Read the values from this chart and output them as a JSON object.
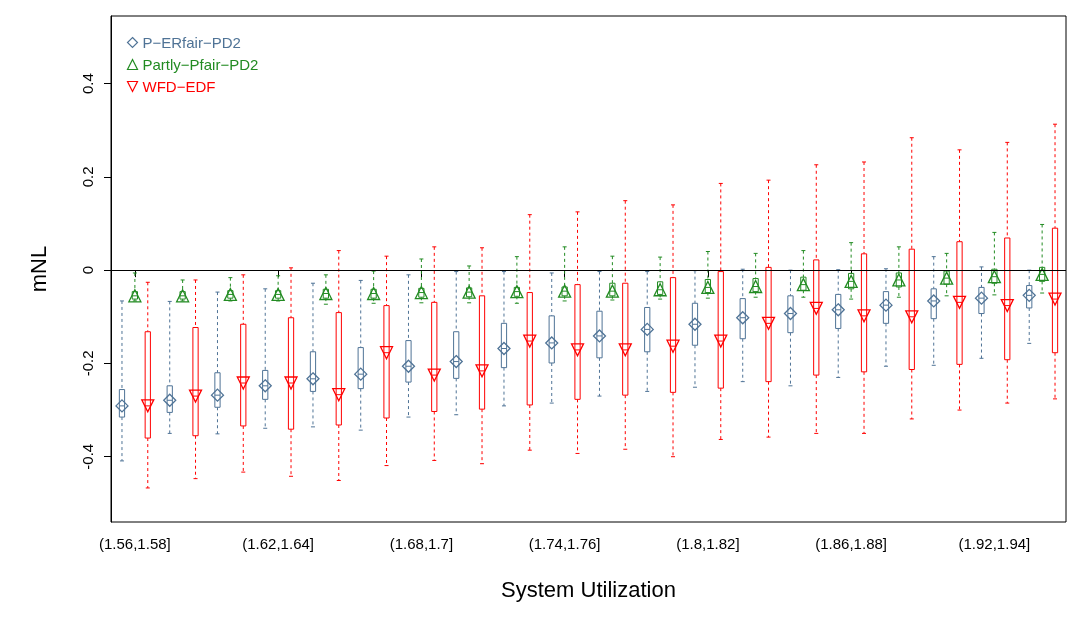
{
  "chart_data": {
    "type": "box",
    "xlabel": "System Utilization",
    "ylabel": "mNL",
    "legend": "top left",
    "categories": [
      "(1.56,1.58]",
      null,
      null,
      "(1.62,1.64]",
      null,
      null,
      "(1.68,1.7]",
      null,
      null,
      "(1.74,1.76]",
      null,
      null,
      "(1.8,1.82]",
      null,
      null,
      "(1.86,1.88]",
      null,
      null,
      "(1.92,1.94]",
      null
    ],
    "ylim": [
      -0.54,
      0.545
    ],
    "yticks": [
      -0.4,
      -0.2,
      0,
      0.2,
      0.4
    ],
    "ref_lines": [
      {
        "axis": "y",
        "value": 0,
        "color": "#000000"
      }
    ],
    "series": [
      {
        "name": "P−ERfair−PD2",
        "color": "#4f7396",
        "marker": "diamond",
        "boxes": [
          {
            "low": -0.409,
            "q1": -0.315,
            "median": -0.291,
            "mean": -0.291,
            "q3": -0.256,
            "high": -0.066
          },
          {
            "low": -0.35,
            "q1": -0.305,
            "median": -0.279,
            "mean": -0.279,
            "q3": -0.248,
            "high": -0.067
          },
          {
            "low": -0.351,
            "q1": -0.294,
            "median": -0.268,
            "mean": -0.268,
            "q3": -0.22,
            "high": -0.047
          },
          {
            "low": -0.339,
            "q1": -0.277,
            "median": -0.248,
            "mean": -0.248,
            "q3": -0.215,
            "high": -0.04
          },
          {
            "low": -0.336,
            "q1": -0.26,
            "median": -0.233,
            "mean": -0.233,
            "q3": -0.175,
            "high": -0.028
          },
          {
            "low": -0.343,
            "q1": -0.254,
            "median": -0.223,
            "mean": -0.223,
            "q3": -0.166,
            "high": -0.022
          },
          {
            "low": -0.315,
            "q1": -0.24,
            "median": -0.206,
            "mean": -0.206,
            "q3": -0.151,
            "high": -0.01
          },
          {
            "low": -0.31,
            "q1": -0.232,
            "median": -0.196,
            "mean": -0.196,
            "q3": -0.132,
            "high": -0.003
          },
          {
            "low": -0.291,
            "q1": -0.209,
            "median": -0.168,
            "mean": -0.168,
            "q3": -0.114,
            "high": -0.003
          },
          {
            "low": -0.285,
            "q1": -0.199,
            "median": -0.156,
            "mean": -0.156,
            "q3": -0.098,
            "high": -0.006
          },
          {
            "low": -0.27,
            "q1": -0.188,
            "median": -0.141,
            "mean": -0.141,
            "q3": -0.088,
            "high": -0.003
          },
          {
            "low": -0.26,
            "q1": -0.175,
            "median": -0.127,
            "mean": -0.127,
            "q3": -0.08,
            "high": -0.003
          },
          {
            "low": -0.251,
            "q1": -0.161,
            "median": -0.116,
            "mean": -0.116,
            "q3": -0.071,
            "high": -0.001
          },
          {
            "low": -0.239,
            "q1": -0.147,
            "median": -0.102,
            "mean": -0.102,
            "q3": -0.061,
            "high": 0.002
          },
          {
            "low": -0.248,
            "q1": -0.134,
            "median": -0.093,
            "mean": -0.093,
            "q3": -0.055,
            "high": 0
          },
          {
            "low": -0.23,
            "q1": -0.125,
            "median": -0.085,
            "mean": -0.085,
            "q3": -0.052,
            "high": 0.001
          },
          {
            "low": -0.206,
            "q1": -0.114,
            "median": -0.075,
            "mean": -0.075,
            "q3": -0.046,
            "high": 0.003
          },
          {
            "low": -0.204,
            "q1": -0.104,
            "median": -0.066,
            "mean": -0.066,
            "q3": -0.04,
            "high": 0.029
          },
          {
            "low": -0.189,
            "q1": -0.093,
            "median": -0.06,
            "mean": -0.06,
            "q3": -0.037,
            "high": 0.007
          },
          {
            "low": -0.157,
            "q1": -0.081,
            "median": -0.054,
            "mean": -0.054,
            "q3": -0.033,
            "high": 0
          }
        ]
      },
      {
        "name": "Partly−Pfair−PD2",
        "color": "#228b22",
        "marker": "triangle",
        "boxes": [
          {
            "low": -0.066,
            "q1": -0.062,
            "median": -0.055,
            "mean": -0.055,
            "q3": -0.046,
            "high": -0.006
          },
          {
            "low": -0.066,
            "q1": -0.062,
            "median": -0.055,
            "mean": -0.055,
            "q3": -0.046,
            "high": -0.021
          },
          {
            "low": -0.066,
            "q1": -0.06,
            "median": -0.052,
            "mean": -0.052,
            "q3": -0.044,
            "high": -0.016
          },
          {
            "low": -0.066,
            "q1": -0.06,
            "median": -0.052,
            "mean": -0.052,
            "q3": -0.044,
            "high": -0.012
          },
          {
            "low": -0.073,
            "q1": -0.06,
            "median": -0.05,
            "mean": -0.05,
            "q3": -0.041,
            "high": -0.01
          },
          {
            "low": -0.071,
            "q1": -0.06,
            "median": -0.05,
            "mean": -0.05,
            "q3": -0.041,
            "high": -0.002
          },
          {
            "low": -0.07,
            "q1": -0.058,
            "median": -0.048,
            "mean": -0.048,
            "q3": -0.039,
            "high": 0.024
          },
          {
            "low": -0.07,
            "q1": -0.057,
            "median": -0.047,
            "mean": -0.047,
            "q3": -0.038,
            "high": 0.009
          },
          {
            "low": -0.071,
            "q1": -0.056,
            "median": -0.046,
            "mean": -0.046,
            "q3": -0.037,
            "high": 0.029
          },
          {
            "low": -0.066,
            "q1": -0.055,
            "median": -0.045,
            "mean": -0.045,
            "q3": -0.036,
            "high": 0.05
          },
          {
            "low": -0.064,
            "q1": -0.055,
            "median": -0.045,
            "mean": -0.045,
            "q3": -0.028,
            "high": 0.03
          },
          {
            "low": -0.062,
            "q1": -0.052,
            "median": -0.042,
            "mean": -0.042,
            "q3": -0.025,
            "high": 0.028
          },
          {
            "low": -0.06,
            "q1": -0.048,
            "median": -0.037,
            "mean": -0.037,
            "q3": -0.02,
            "high": 0.04
          },
          {
            "low": -0.058,
            "q1": -0.046,
            "median": -0.035,
            "mean": -0.035,
            "q3": -0.018,
            "high": 0.036
          },
          {
            "low": -0.058,
            "q1": -0.043,
            "median": -0.031,
            "mean": -0.031,
            "q3": -0.015,
            "high": 0.042
          },
          {
            "low": -0.062,
            "q1": -0.04,
            "median": -0.024,
            "mean": -0.024,
            "q3": -0.007,
            "high": 0.059
          },
          {
            "low": -0.058,
            "q1": -0.036,
            "median": -0.021,
            "mean": -0.021,
            "q3": -0.006,
            "high": 0.05
          },
          {
            "low": -0.055,
            "q1": -0.03,
            "median": -0.017,
            "mean": -0.017,
            "q3": -0.002,
            "high": 0.036
          },
          {
            "low": -0.053,
            "q1": -0.028,
            "median": -0.014,
            "mean": -0.014,
            "q3": 0.002,
            "high": 0.081
          },
          {
            "low": -0.049,
            "q1": -0.024,
            "median": -0.009,
            "mean": -0.009,
            "q3": 0.006,
            "high": 0.098
          }
        ]
      },
      {
        "name": "WFD−EDF",
        "color": "#ff0000",
        "marker": "triangle-down",
        "boxes": [
          {
            "low": -0.467,
            "q1": -0.36,
            "median": -0.291,
            "mean": -0.291,
            "q3": -0.132,
            "high": -0.026
          },
          {
            "low": -0.447,
            "q1": -0.355,
            "median": -0.27,
            "mean": -0.27,
            "q3": -0.123,
            "high": -0.021
          },
          {
            "low": -0.433,
            "q1": -0.334,
            "median": -0.242,
            "mean": -0.242,
            "q3": -0.116,
            "high": -0.01
          },
          {
            "low": -0.442,
            "q1": -0.341,
            "median": -0.242,
            "mean": -0.242,
            "q3": -0.102,
            "high": 0.005
          },
          {
            "low": -0.451,
            "q1": -0.332,
            "median": -0.267,
            "mean": -0.267,
            "q3": -0.091,
            "high": 0.042
          },
          {
            "low": -0.419,
            "q1": -0.317,
            "median": -0.177,
            "mean": -0.177,
            "q3": -0.076,
            "high": 0.03
          },
          {
            "low": -0.408,
            "q1": -0.303,
            "median": -0.225,
            "mean": -0.225,
            "q3": -0.069,
            "high": 0.05
          },
          {
            "low": -0.415,
            "q1": -0.298,
            "median": -0.216,
            "mean": -0.216,
            "q3": -0.055,
            "high": 0.048
          },
          {
            "low": -0.386,
            "q1": -0.289,
            "median": -0.152,
            "mean": -0.152,
            "q3": -0.048,
            "high": 0.119
          },
          {
            "low": -0.393,
            "q1": -0.277,
            "median": -0.171,
            "mean": -0.171,
            "q3": -0.031,
            "high": 0.125
          },
          {
            "low": -0.384,
            "q1": -0.268,
            "median": -0.171,
            "mean": -0.171,
            "q3": -0.028,
            "high": 0.149
          },
          {
            "low": -0.4,
            "q1": -0.262,
            "median": -0.163,
            "mean": -0.163,
            "q3": -0.016,
            "high": 0.14
          },
          {
            "low": -0.363,
            "q1": -0.253,
            "median": -0.152,
            "mean": -0.152,
            "q3": -0.003,
            "high": 0.186
          },
          {
            "low": -0.358,
            "q1": -0.239,
            "median": -0.114,
            "mean": -0.114,
            "q3": 0.006,
            "high": 0.193
          },
          {
            "low": -0.35,
            "q1": -0.225,
            "median": -0.082,
            "mean": -0.082,
            "q3": 0.022,
            "high": 0.226
          },
          {
            "low": -0.35,
            "q1": -0.218,
            "median": -0.098,
            "mean": -0.098,
            "q3": 0.035,
            "high": 0.232
          },
          {
            "low": -0.319,
            "q1": -0.213,
            "median": -0.1,
            "mean": -0.1,
            "q3": 0.045,
            "high": 0.284
          },
          {
            "low": -0.3,
            "q1": -0.202,
            "median": -0.069,
            "mean": -0.069,
            "q3": 0.061,
            "high": 0.258
          },
          {
            "low": -0.285,
            "q1": -0.192,
            "median": -0.076,
            "mean": -0.076,
            "q3": 0.069,
            "high": 0.274
          },
          {
            "low": -0.276,
            "q1": -0.177,
            "median": -0.062,
            "mean": -0.062,
            "q3": 0.09,
            "high": 0.313
          }
        ]
      }
    ]
  }
}
